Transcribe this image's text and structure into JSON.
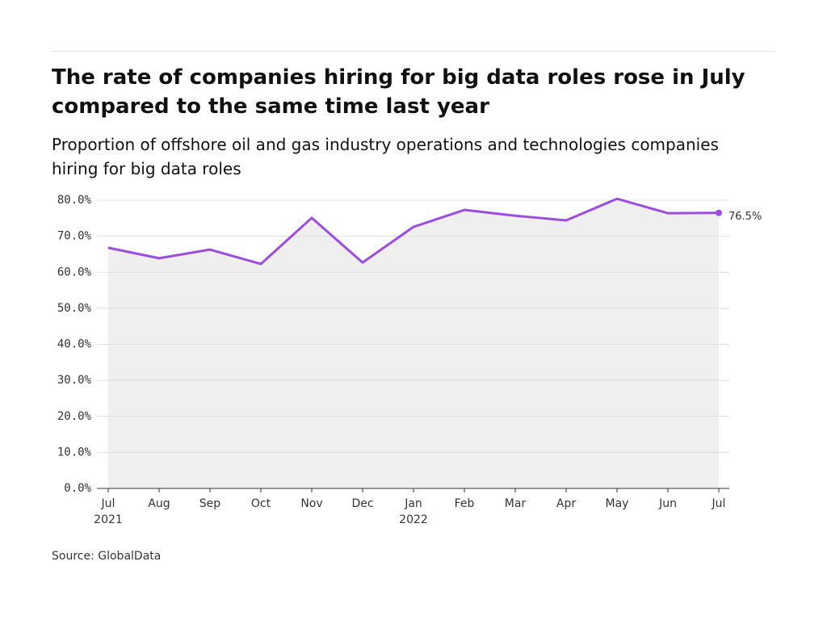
{
  "chart_data": {
    "type": "line",
    "title": "The rate of companies hiring for big data roles rose in July compared to the same time last year",
    "subtitle": "Proportion of offshore oil and gas industry operations and technologies companies hiring for big data roles",
    "source": "Source: GlobalData",
    "categories": [
      "Jul",
      "Aug",
      "Sep",
      "Oct",
      "Nov",
      "Dec",
      "Jan",
      "Feb",
      "Mar",
      "Apr",
      "May",
      "Jun",
      "Jul"
    ],
    "years": [
      "2021",
      null,
      null,
      null,
      null,
      null,
      "2022",
      null,
      null,
      null,
      null,
      null,
      null
    ],
    "values": [
      66.8,
      63.9,
      66.3,
      62.3,
      75.1,
      62.7,
      72.6,
      77.3,
      75.7,
      74.4,
      80.4,
      76.4,
      76.5
    ],
    "value_labels": [
      null,
      null,
      null,
      null,
      null,
      null,
      null,
      null,
      null,
      null,
      null,
      null,
      "76.5%"
    ],
    "color": "#9b4de0",
    "ylim": [
      0,
      80
    ],
    "yticks": [
      {
        "value": 0,
        "label": "0.0%"
      },
      {
        "value": 10,
        "label": "10.0%"
      },
      {
        "value": 20,
        "label": "20.0%"
      },
      {
        "value": 30,
        "label": "30.0%"
      },
      {
        "value": 40,
        "label": "40.0%"
      },
      {
        "value": 50,
        "label": "50.0%"
      },
      {
        "value": 60,
        "label": "60.0%"
      },
      {
        "value": 70,
        "label": "70.0%"
      },
      {
        "value": 80,
        "label": "80.0%"
      }
    ],
    "grid": true
  }
}
